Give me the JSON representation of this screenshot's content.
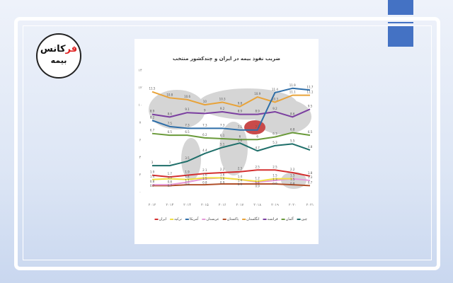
{
  "logo": {
    "text_part1": "فر",
    "text_part2": "کانس",
    "text_line2": "بیمه"
  },
  "colors": {
    "accent": "#4472c4",
    "frame": "#ffffff"
  },
  "chart_data": {
    "type": "line",
    "title": "ضریب نفوذ بیمه در ایران و چندکشور منتخب",
    "x": [
      "۲۰۱۲",
      "۲۰۱۳",
      "۲۰۱۴",
      "۲۰۱۵",
      "۲۰۱۶",
      "۲۰۱۷",
      "۲۰۱۸",
      "۲۰۱۹",
      "۲۰۲۰",
      "۲۰۲۱"
    ],
    "ylim": [
      0,
      14
    ],
    "yticks": [
      "۰",
      "۲",
      "۴",
      "۶",
      "۸",
      "۱۰",
      "۱۲",
      "۱۴"
    ],
    "grid": false,
    "legend": "bottom",
    "series": [
      {
        "name": "چین",
        "color": "#1f6f6a",
        "values": [
          3,
          3,
          3.5,
          4.4,
          5.1,
          5.6,
          4.7,
          5.3,
          5.5,
          4.8
        ]
      },
      {
        "name": "آلمان",
        "color": "#6a9a3a",
        "values": [
          6.7,
          6.5,
          6.5,
          6.2,
          6.1,
          6.0,
          6.0,
          6.3,
          6.8,
          6.5
        ]
      },
      {
        "name": "فرانسه",
        "color": "#7b3fa0",
        "values": [
          8.9,
          8.6,
          9.1,
          9.0,
          9.2,
          8.9,
          8.9,
          9.2,
          8.6,
          9.5
        ]
      },
      {
        "name": "انگلستان",
        "color": "#e8a33a",
        "values": [
          11.5,
          10.8,
          10.6,
          10.0,
          10.3,
          9.8,
          10.9,
          10.3,
          11.1,
          11.1
        ]
      },
      {
        "name": "پاکستان",
        "color": "#b0502a",
        "values": [
          0.7,
          0.7,
          0.8,
          0.8,
          0.9,
          0.9,
          0.9,
          0.9,
          0.8,
          0.7
        ]
      },
      {
        "name": "عربستان",
        "color": "#e59ad8",
        "values": [
          0.8,
          0.8,
          1.1,
          1.5,
          1.6,
          1.4,
          1.1,
          1.3,
          1.5,
          1.3
        ]
      },
      {
        "name": "آمریکا",
        "color": "#2e6ea8",
        "values": [
          8.2,
          7.5,
          7.3,
          7.3,
          7.3,
          7.1,
          7.1,
          11.4,
          11.9,
          11.7
        ]
      },
      {
        "name": "ترکیه",
        "color": "#f0e040",
        "values": [
          1.4,
          1.5,
          1.4,
          1.6,
          1.6,
          1.4,
          1.2,
          1.5,
          1.5,
          null
        ]
      },
      {
        "name": "ایران",
        "color": "#d43030",
        "values": [
          1.9,
          1.7,
          1.9,
          2.1,
          2.2,
          2.3,
          2.5,
          2.5,
          2.2,
          1.8
        ]
      }
    ]
  }
}
